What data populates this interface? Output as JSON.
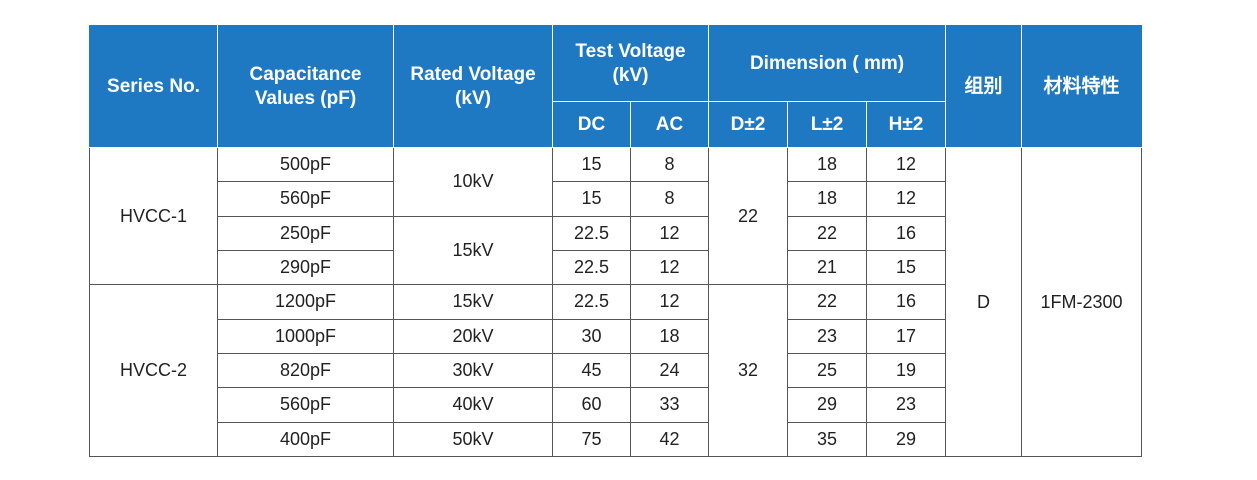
{
  "header": {
    "series_no": "Series No.",
    "capacitance": "Capacitance Values (pF)",
    "rated_voltage": "Rated Voltage (kV)",
    "test_voltage": "Test Voltage (kV)",
    "dimension": "Dimension ( mm)",
    "group": "组别",
    "material": "材料特性",
    "dc": "DC",
    "ac": "AC",
    "d": "D±2",
    "l": "L±2",
    "h": "H±2"
  },
  "groups": [
    {
      "series": "HVCC-1",
      "d": "22"
    },
    {
      "series": "HVCC-2",
      "d": "32"
    }
  ],
  "group_value": "D",
  "material_value": "1FM-2300",
  "rated_merged": [
    "10kV",
    "15kV"
  ],
  "rows": [
    {
      "cap": "500pF",
      "rated": "10kV",
      "dc": "15",
      "ac": "8",
      "l": "18",
      "h": "12"
    },
    {
      "cap": "560pF",
      "rated": "10kV",
      "dc": "15",
      "ac": "8",
      "l": "18",
      "h": "12"
    },
    {
      "cap": "250pF",
      "rated": "15kV",
      "dc": "22.5",
      "ac": "12",
      "l": "22",
      "h": "16"
    },
    {
      "cap": "290pF",
      "rated": "15kV",
      "dc": "22.5",
      "ac": "12",
      "l": "21",
      "h": "15"
    },
    {
      "cap": "1200pF",
      "rated": "15kV",
      "dc": "22.5",
      "ac": "12",
      "l": "22",
      "h": "16"
    },
    {
      "cap": "1000pF",
      "rated": "20kV",
      "dc": "30",
      "ac": "18",
      "l": "23",
      "h": "17"
    },
    {
      "cap": "820pF",
      "rated": "30kV",
      "dc": "45",
      "ac": "24",
      "l": "25",
      "h": "19"
    },
    {
      "cap": "560pF",
      "rated": "40kV",
      "dc": "60",
      "ac": "33",
      "l": "29",
      "h": "23"
    },
    {
      "cap": "400pF",
      "rated": "50kV",
      "dc": "75",
      "ac": "42",
      "l": "35",
      "h": "29"
    }
  ]
}
